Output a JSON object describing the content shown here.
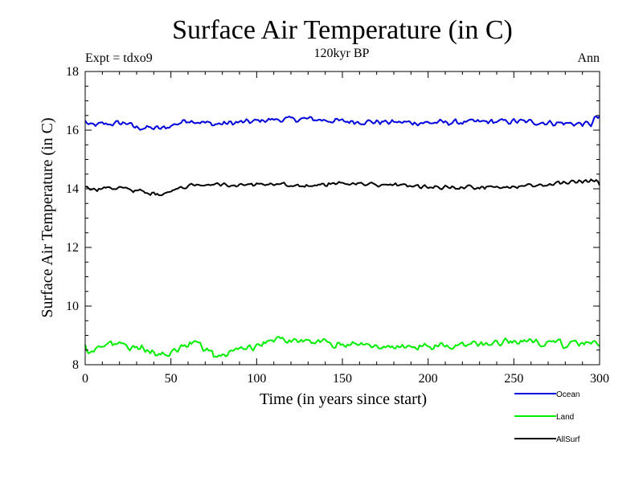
{
  "chart_data": {
    "type": "line",
    "title": "Surface Air Temperature (in C)",
    "subtitle": "120kyr BP",
    "top_left_label": "Expt = tdxo9",
    "top_right_label": "Ann",
    "xlabel": "Time (in years since start)",
    "ylabel": "Surface Air Temperature (in C)",
    "xlim": [
      0,
      300
    ],
    "ylim": [
      8,
      18
    ],
    "x_ticks": [
      0,
      50,
      100,
      150,
      200,
      250,
      300
    ],
    "y_ticks": [
      8,
      10,
      12,
      14,
      16,
      18
    ],
    "grid": false,
    "legend_position": "bottom-right, below plot",
    "series": [
      {
        "name": "Ocean",
        "color": "#0000dd",
        "mean": 16.25,
        "amp": 0.12,
        "anchors": [
          [
            0,
            16.3
          ],
          [
            3,
            16.15
          ],
          [
            10,
            16.2
          ],
          [
            25,
            16.25
          ],
          [
            28,
            16.1
          ],
          [
            45,
            16.05
          ],
          [
            60,
            16.35
          ],
          [
            75,
            16.2
          ],
          [
            100,
            16.3
          ],
          [
            105,
            16.35
          ],
          [
            130,
            16.38
          ],
          [
            150,
            16.3
          ],
          [
            200,
            16.25
          ],
          [
            250,
            16.3
          ],
          [
            295,
            16.2
          ],
          [
            298,
            16.45
          ],
          [
            300,
            16.4
          ]
        ]
      },
      {
        "name": "Land",
        "color": "#00ee00",
        "mean": 8.6,
        "amp": 0.15,
        "anchors": [
          [
            0,
            8.7
          ],
          [
            2,
            8.4
          ],
          [
            10,
            8.7
          ],
          [
            28,
            8.6
          ],
          [
            40,
            8.5
          ],
          [
            44,
            8.3
          ],
          [
            65,
            8.8
          ],
          [
            75,
            8.3
          ],
          [
            100,
            8.65
          ],
          [
            110,
            8.85
          ],
          [
            150,
            8.7
          ],
          [
            200,
            8.6
          ],
          [
            255,
            8.8
          ],
          [
            280,
            8.7
          ],
          [
            300,
            8.75
          ]
        ]
      },
      {
        "name": "AllSurf",
        "color": "#000000",
        "mean": 14.05,
        "amp": 0.09,
        "anchors": [
          [
            0,
            14.1
          ],
          [
            3,
            13.95
          ],
          [
            20,
            14.05
          ],
          [
            28,
            13.95
          ],
          [
            44,
            13.8
          ],
          [
            65,
            14.2
          ],
          [
            100,
            14.1
          ],
          [
            110,
            14.15
          ],
          [
            130,
            14.1
          ],
          [
            150,
            14.2
          ],
          [
            200,
            14.05
          ],
          [
            250,
            14.05
          ],
          [
            298,
            14.3
          ],
          [
            300,
            14.1
          ]
        ]
      }
    ]
  }
}
